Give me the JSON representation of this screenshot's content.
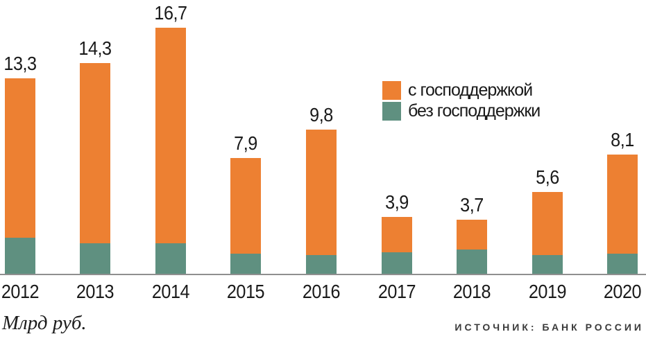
{
  "chart_data": {
    "type": "bar",
    "stacked": true,
    "title": "",
    "categories": [
      "2012",
      "2013",
      "2014",
      "2015",
      "2016",
      "2017",
      "2018",
      "2019",
      "2020"
    ],
    "totals": [
      13.3,
      14.3,
      16.7,
      7.9,
      9.8,
      3.9,
      3.7,
      5.6,
      8.1
    ],
    "total_labels": [
      "13,3",
      "14,3",
      "16,7",
      "7,9",
      "9,8",
      "3,9",
      "3,7",
      "5,6",
      "8,1"
    ],
    "series": [
      {
        "name": "с господдержкой",
        "color": "#ED8032",
        "values_est": [
          10.8,
          12.2,
          14.6,
          6.5,
          8.5,
          2.4,
          2.0,
          4.3,
          6.7
        ]
      },
      {
        "name": "без господдержки",
        "color": "#5F9080",
        "values_est": [
          2.5,
          2.1,
          2.1,
          1.4,
          1.3,
          1.5,
          1.7,
          1.3,
          1.4
        ]
      }
    ],
    "value_axis_units": "Млрд руб.",
    "source": "ИСТОЧНИК: БАНК РОССИИ",
    "ylim": [
      0,
      18.7
    ],
    "grid": false,
    "legend_position": "top-right-of-center",
    "notes": "Totals are printed above bars; per-segment split estimated from pixel heights"
  },
  "legend": {
    "items": [
      {
        "label": "с господдержкой",
        "color": "#ED8032"
      },
      {
        "label": "без господдержки",
        "color": "#5F9080"
      }
    ]
  },
  "footer": {
    "units_label": "Млрд руб.",
    "source_label": "ИСТОЧНИК: БАНК РОССИИ"
  },
  "colors": {
    "with_support": "#ED8032",
    "without_support": "#5F9080",
    "axis_line": "#8F8F8F",
    "label_text": "#1A1A1A",
    "source_text": "#3A3A3A",
    "background": "#FFFFFF"
  }
}
